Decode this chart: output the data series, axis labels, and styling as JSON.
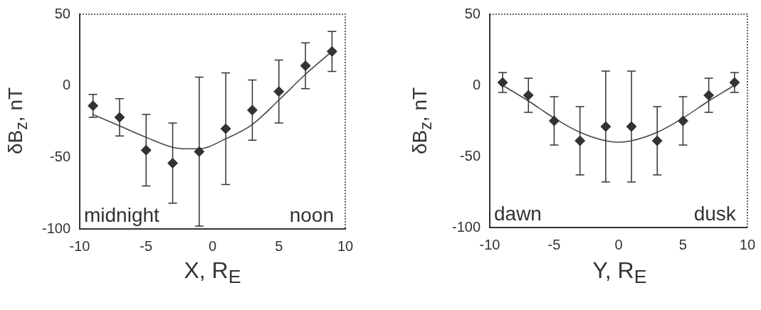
{
  "chart_data": [
    {
      "type": "scatter",
      "xlabel": "X, R$_{E}$",
      "ylabel": "δB$_{z}$, nT",
      "xlim": [
        -10,
        10
      ],
      "ylim": [
        -100,
        50
      ],
      "xticks": [
        -10,
        -5,
        0,
        5,
        10
      ],
      "yticks": [
        -100,
        -50,
        0,
        50
      ],
      "annotations": [
        "midnight",
        "noon"
      ],
      "series": [
        {
          "type": "scatter",
          "marker": "diamond",
          "color": "#333333",
          "x": [
            -9,
            -7,
            -5,
            -3,
            -1,
            1,
            3,
            5,
            7,
            9
          ],
          "values": [
            -14,
            -22,
            -45,
            -54,
            -46,
            -30,
            -17,
            -4,
            14,
            24
          ],
          "errors": [
            8,
            13,
            25,
            28,
            52,
            39,
            21,
            22,
            16,
            14
          ]
        },
        {
          "type": "line",
          "marker": "none",
          "line_style": "solid",
          "color": "#444444",
          "x": [
            -9,
            -7,
            -5,
            -3,
            -2,
            -1,
            1,
            3,
            5,
            7,
            9
          ],
          "values": [
            -20,
            -28,
            -36,
            -43,
            -44,
            -44,
            -37,
            -27,
            -10,
            8,
            24
          ]
        }
      ]
    },
    {
      "type": "scatter",
      "xlabel": "Y, R$_{E}$",
      "ylabel": "δB$_{z}$, nT",
      "xlim": [
        -10,
        10
      ],
      "ylim": [
        -100,
        50
      ],
      "xticks": [
        -10,
        -5,
        0,
        5,
        10
      ],
      "yticks": [
        -100,
        -50,
        0,
        50
      ],
      "annotations": [
        "dawn",
        "dusk"
      ],
      "series": [
        {
          "type": "scatter",
          "marker": "diamond",
          "color": "#333333",
          "x": [
            -9,
            -7,
            -5,
            -3,
            -1,
            1,
            3,
            5,
            7,
            9
          ],
          "values": [
            2,
            -7,
            -25,
            -39,
            -29,
            -29,
            -39,
            -25,
            -7,
            2
          ],
          "errors": [
            7,
            12,
            17,
            24,
            39,
            39,
            24,
            17,
            12,
            7
          ]
        },
        {
          "type": "line",
          "marker": "none",
          "line_style": "solid",
          "color": "#444444",
          "x": [
            -9,
            -7,
            -5,
            -3,
            -1,
            0,
            1,
            3,
            5,
            7,
            9
          ],
          "values": [
            0,
            -11,
            -23,
            -33,
            -39,
            -40,
            -39,
            -33,
            -23,
            -11,
            0
          ]
        }
      ]
    }
  ]
}
